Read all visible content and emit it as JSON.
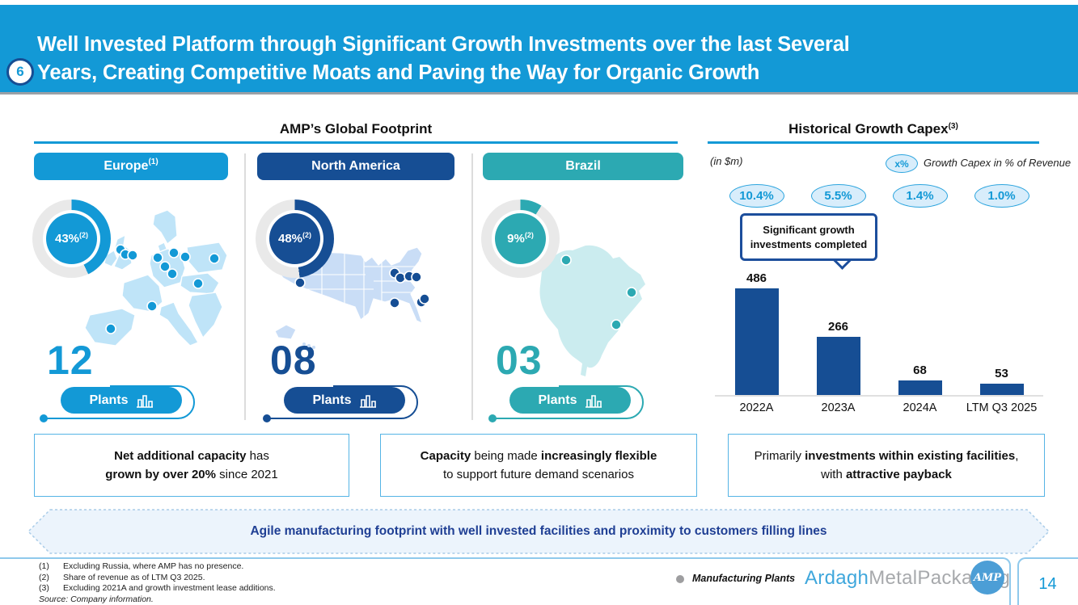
{
  "header": {
    "badge": "6",
    "title_line1": "Well Invested Platform through Significant Growth Investments over the last Several",
    "title_line2": "Years, Creating Competitive Moats and Paving the Way for Organic Growth"
  },
  "footprint": {
    "title": "AMP’s Global Footprint",
    "regions": [
      {
        "name": "Europe",
        "name_sup": "(1)",
        "share": "43%",
        "share_sup": "(2)",
        "share_pct": 43,
        "plants_count": "12",
        "plants_label": "Plants",
        "color": "#1399D6"
      },
      {
        "name": "North America",
        "name_sup": "",
        "share": "48%",
        "share_sup": "(2)",
        "share_pct": 48,
        "plants_count": "08",
        "plants_label": "Plants",
        "color": "#164E94"
      },
      {
        "name": "Brazil",
        "name_sup": "",
        "share": "9%",
        "share_sup": "(2)",
        "share_pct": 9,
        "plants_count": "03",
        "plants_label": "Plants",
        "color": "#2CA9B2"
      }
    ]
  },
  "capex": {
    "title": "Historical Growth Capex",
    "title_sup": "(3)",
    "unit_label": "(in $m)",
    "legend_badge": "x%",
    "legend_label": "Growth Capex in % of Revenue",
    "callout": "Significant growth investments completed"
  },
  "chart_data": [
    {
      "type": "bar",
      "title": "Historical Growth Capex",
      "unit": "$m",
      "categories": [
        "2022A",
        "2023A",
        "2024A",
        "LTM Q3 2025"
      ],
      "values": [
        486,
        266,
        68,
        53
      ],
      "pct_of_revenue": [
        "10.4%",
        "5.5%",
        "1.4%",
        "1.0%"
      ],
      "bar_color": "#164E94",
      "ylim": [
        0,
        500
      ],
      "grid": false,
      "value_labels": true
    },
    {
      "type": "pie",
      "title": "Share of revenue as of LTM Q3 2025 (donuts per region)",
      "categories": [
        "Europe",
        "North America",
        "Brazil"
      ],
      "values": [
        43,
        48,
        9
      ],
      "plants": [
        12,
        8,
        3
      ]
    }
  ],
  "insights": [
    {
      "segments": [
        {
          "t": "Net additional capacity",
          "b": true
        },
        {
          "t": " has",
          "b": false
        },
        {
          "br": true
        },
        {
          "t": "grown by over 20%",
          "b": true
        },
        {
          "t": " since 2021",
          "b": false
        }
      ]
    },
    {
      "segments": [
        {
          "t": "Capacity",
          "b": true
        },
        {
          "t": " being made ",
          "b": false
        },
        {
          "t": "increasingly flexible",
          "b": true
        },
        {
          "br": true
        },
        {
          "t": "to support future demand scenarios",
          "b": false
        }
      ]
    },
    {
      "segments": [
        {
          "t": "Primarily ",
          "b": false
        },
        {
          "t": "investments within existing facilities",
          "b": true
        },
        {
          "t": ",",
          "b": false
        },
        {
          "br": true
        },
        {
          "t": "with ",
          "b": false
        },
        {
          "t": "attractive payback",
          "b": true
        }
      ]
    }
  ],
  "banner": {
    "text": "Agile manufacturing footprint with well invested facilities and proximity to customers filling lines"
  },
  "footer": {
    "footnotes": [
      {
        "num": "(1)",
        "text": "Excluding Russia, where AMP has no presence."
      },
      {
        "num": "(2)",
        "text": "Share of revenue as of LTM Q3 2025."
      },
      {
        "num": "(3)",
        "text": "Excluding 2021A and growth investment lease additions."
      }
    ],
    "source": "Source: Company information.",
    "legend_label": "Manufacturing Plants",
    "logo_part1": "Ardagh",
    "logo_part2": "MetalPackaging",
    "logo_monogram": "AMP",
    "page_number": "14"
  }
}
